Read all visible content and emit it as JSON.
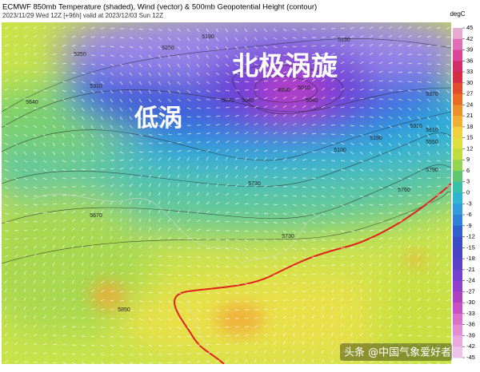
{
  "header": {
    "title": "ECMWF 850mb Temperature (shaded), Wind (vector) & 500mb Geopotential Height (contour)",
    "subtitle": "2023/11/29 Wed 12Z [+96h] valid at 2023/12/03 Sun 12Z"
  },
  "colorbar": {
    "unit": "degC",
    "ticks": [
      45,
      42,
      39,
      36,
      33,
      30,
      27,
      24,
      21,
      18,
      15,
      12,
      9,
      6,
      3,
      0,
      -3,
      -6,
      -9,
      -12,
      -15,
      -18,
      -21,
      -24,
      -27,
      -30,
      -33,
      -36,
      -39,
      -42,
      -45
    ]
  },
  "annotations": {
    "polar_vortex": "北极涡旋",
    "low_vortex": "低涡"
  },
  "contour_labels": [
    "5190",
    "5250",
    "5310",
    "5250",
    "5130",
    "5070",
    "5040",
    "4980",
    "5010",
    "5040",
    "5100",
    "5190",
    "5310",
    "5370",
    "5550",
    "5610",
    "5640",
    "5670",
    "5730",
    "5730",
    "5760",
    "5790",
    "5850"
  ],
  "watermark": "头条 @中国气象爱好者"
}
